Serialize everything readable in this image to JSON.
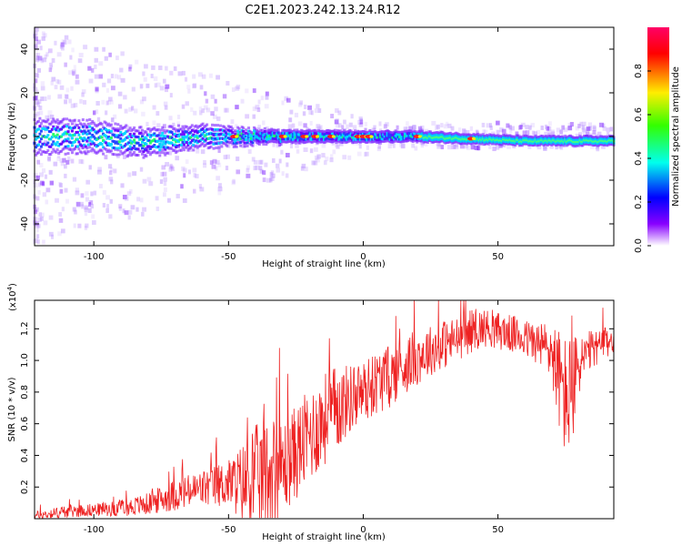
{
  "title": "C2E1.2023.242.13.24.R12",
  "chart_data": [
    {
      "type": "heatmap",
      "xlabel": "Height of straight line (km)",
      "ylabel": "Frequency (Hz)",
      "xlim": [
        -122,
        93
      ],
      "ylim": [
        -50,
        50
      ],
      "xticks": [
        -100,
        -50,
        0,
        50
      ],
      "yticks": [
        -40,
        -20,
        0,
        20,
        40
      ],
      "colorbar": {
        "label": "Normalized spectral amplitude",
        "range": [
          0,
          1
        ],
        "ticks": [
          "0.0",
          "0.2",
          "0.4",
          "0.6",
          "0.8"
        ],
        "colormap": [
          "#ff0000",
          "#ffff00",
          "#00ff00",
          "#00ffff",
          "#0000ff",
          "#8000ff",
          "#ffffff"
        ]
      },
      "ridge": {
        "description_free": true,
        "center_freq": [
          [
            -122,
            0
          ],
          [
            -100,
            0
          ],
          [
            -80,
            -3
          ],
          [
            -60,
            0
          ],
          [
            -40,
            0
          ],
          [
            -20,
            0
          ],
          [
            0,
            0
          ],
          [
            20,
            0
          ],
          [
            40,
            -1
          ],
          [
            60,
            -2
          ],
          [
            93,
            -2
          ]
        ],
        "half_width": [
          [
            -122,
            8
          ],
          [
            -60,
            5
          ],
          [
            -40,
            3
          ],
          [
            0,
            2.5
          ],
          [
            50,
            2
          ],
          [
            93,
            2
          ]
        ]
      }
    },
    {
      "type": "line",
      "xlabel": "Height of straight line (km)",
      "ylabel": "SNR (10 * v/v)",
      "yscale_label": "(x10",
      "yscale_exp": "4",
      "yscale_close": ")",
      "xlim": [
        -122,
        93
      ],
      "ylim": [
        0,
        1.38
      ],
      "xticks": [
        -100,
        -50,
        0,
        50
      ],
      "yticks": [
        0.2,
        0.4,
        0.6,
        0.8,
        1.0,
        1.2
      ],
      "ytick_labels": [
        "0.2",
        "0.4",
        "0.6",
        "0.8",
        "1.0",
        "1.2"
      ],
      "color": "#ee2222",
      "series": [
        {
          "x": [
            -122,
            -110,
            -100,
            -90,
            -80,
            -70,
            -60,
            -50,
            -45,
            -40,
            -35,
            -30,
            -25,
            -20,
            -15,
            -10,
            -5,
            0,
            5,
            10,
            15,
            20,
            25,
            30,
            35,
            40,
            45,
            50,
            55,
            60,
            65,
            70,
            72,
            75,
            78,
            80,
            85,
            90,
            93
          ],
          "baseline": [
            0.02,
            0.05,
            0.06,
            0.07,
            0.1,
            0.16,
            0.2,
            0.24,
            0.25,
            0.28,
            0.33,
            0.35,
            0.45,
            0.55,
            0.65,
            0.72,
            0.78,
            0.82,
            0.88,
            0.92,
            0.98,
            1.04,
            1.08,
            1.12,
            1.15,
            1.2,
            1.22,
            1.2,
            1.18,
            1.15,
            1.12,
            1.08,
            0.95,
            0.8,
            0.85,
            1.0,
            1.08,
            1.12,
            1.15
          ],
          "noise": [
            0.03,
            0.04,
            0.04,
            0.05,
            0.07,
            0.1,
            0.12,
            0.15,
            0.25,
            0.35,
            0.35,
            0.3,
            0.3,
            0.3,
            0.3,
            0.28,
            0.22,
            0.2,
            0.2,
            0.2,
            0.18,
            0.18,
            0.16,
            0.16,
            0.14,
            0.14,
            0.12,
            0.12,
            0.12,
            0.12,
            0.14,
            0.2,
            0.3,
            0.4,
            0.35,
            0.2,
            0.12,
            0.1,
            0.1
          ]
        }
      ]
    }
  ]
}
